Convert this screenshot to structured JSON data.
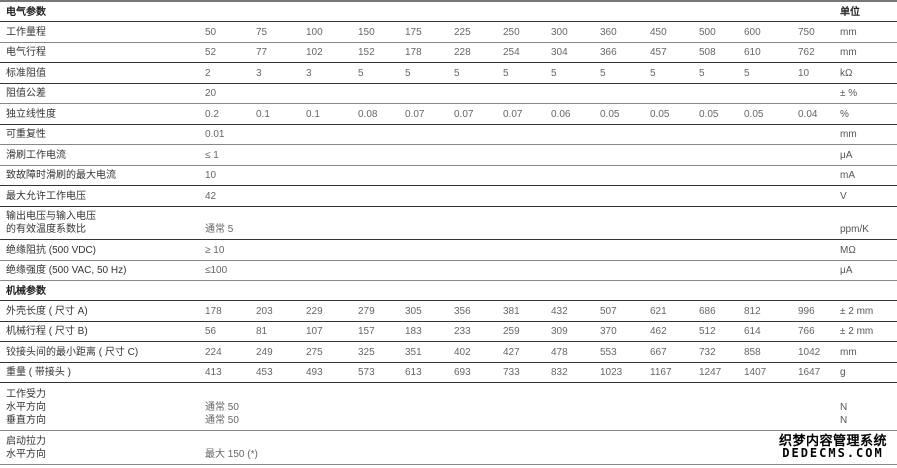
{
  "header": {
    "title": "电气参数",
    "unit_header": "单位"
  },
  "electrical_rows": [
    {
      "label": [
        "工作量程"
      ],
      "values": [
        "50",
        "75",
        "100",
        "150",
        "175",
        "225",
        "250",
        "300",
        "360",
        "450",
        "500",
        "600",
        "750"
      ],
      "unit": "mm"
    },
    {
      "label": [
        "电气行程"
      ],
      "values": [
        "52",
        "77",
        "102",
        "152",
        "178",
        "228",
        "254",
        "304",
        "366",
        "457",
        "508",
        "610",
        "762"
      ],
      "unit": "mm"
    },
    {
      "label": [
        "标准阻值"
      ],
      "values": [
        "2",
        "3",
        "3",
        "5",
        "5",
        "5",
        "5",
        "5",
        "5",
        "5",
        "5",
        "5",
        "10"
      ],
      "unit": "kΩ"
    },
    {
      "label": [
        "阻值公差"
      ],
      "values": [
        "20"
      ],
      "unit": "± %"
    },
    {
      "label": [
        "独立线性度"
      ],
      "values": [
        "0.2",
        "0.1",
        "0.1",
        "0.08",
        "0.07",
        "0.07",
        "0.07",
        "0.06",
        "0.05",
        "0.05",
        "0.05",
        "0.05",
        "0.04"
      ],
      "unit": "%"
    },
    {
      "label": [
        "可重复性"
      ],
      "values": [
        "0.01"
      ],
      "unit": "mm"
    },
    {
      "label": [
        "滑刷工作电流"
      ],
      "values": [
        "≤ 1"
      ],
      "unit": "μA"
    },
    {
      "label": [
        "致故障时滑刷的最大电流"
      ],
      "values": [
        "10"
      ],
      "unit": "mA"
    },
    {
      "label": [
        "最大允许工作电压"
      ],
      "values": [
        "42"
      ],
      "unit": "V"
    },
    {
      "label": [
        "输出电压与输入电压",
        "的有效温度系数比"
      ],
      "values": [
        "通常 5"
      ],
      "unit": "ppm/K"
    },
    {
      "label": [
        "绝缘阻抗 (500 VDC)"
      ],
      "values": [
        "≥ 10"
      ],
      "unit": "MΩ"
    },
    {
      "label": [
        "绝缘强度 (500 VAC, 50 Hz)"
      ],
      "values": [
        "≤100"
      ],
      "unit": "μA"
    }
  ],
  "mechanical": {
    "title": "机械参数"
  },
  "mechanical_rows": [
    {
      "label": [
        "外壳长度 ( 尺寸 A)"
      ],
      "values": [
        "178",
        "203",
        "229",
        "279",
        "305",
        "356",
        "381",
        "432",
        "507",
        "621",
        "686",
        "812",
        "996"
      ],
      "unit": "± 2 mm"
    },
    {
      "label": [
        "机械行程 ( 尺寸 B)"
      ],
      "values": [
        "56",
        "81",
        "107",
        "157",
        "183",
        "233",
        "259",
        "309",
        "370",
        "462",
        "512",
        "614",
        "766"
      ],
      "unit": "± 2 mm"
    },
    {
      "label": [
        "铰接头间的最小距离 ( 尺寸 C)"
      ],
      "values": [
        "224",
        "249",
        "275",
        "325",
        "351",
        "402",
        "427",
        "478",
        "553",
        "667",
        "732",
        "858",
        "1042"
      ],
      "unit": "mm"
    },
    {
      "label": [
        "重量 ( 带接头 )"
      ],
      "values": [
        "413",
        "453",
        "493",
        "573",
        "613",
        "693",
        "733",
        "832",
        "1023",
        "1167",
        "1247",
        "1407",
        "1647"
      ],
      "unit": "g"
    },
    {
      "label": [
        "工作受力",
        "水平方向",
        "垂直方向"
      ],
      "values": [
        "",
        "通常 50",
        "通常 50"
      ],
      "multi": true,
      "unit": [
        "",
        "N",
        "N"
      ]
    },
    {
      "label": [
        "启动拉力",
        "水平方向"
      ],
      "values": [
        "",
        "最大 150 (*)"
      ],
      "multi": true,
      "unit": [
        "",
        ""
      ]
    }
  ],
  "watermark": {
    "cn": "织梦内容管理系统",
    "en": "DEDECMS.COM"
  }
}
